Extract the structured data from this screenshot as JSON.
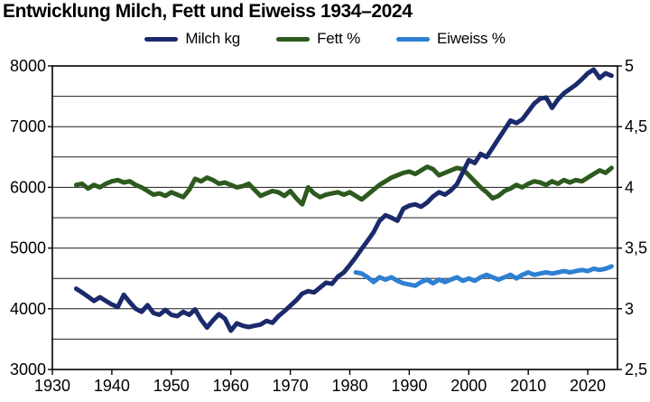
{
  "header": {
    "title": "Entwicklung Milch, Fett und Eiweiss 1934–2024"
  },
  "legend": [
    {
      "label": "Milch kg",
      "color": "#1b2a6b"
    },
    {
      "label": "Fett %",
      "color": "#2d5a1e"
    },
    {
      "label": "Eiweiss %",
      "color": "#2e80d2"
    }
  ],
  "chart_data": {
    "type": "line",
    "title": "Entwicklung Milch, Fett und Eiweiss 1934–2024",
    "grid": true,
    "legend_position": "top",
    "x_axis": {
      "min": 1930,
      "max": 2025,
      "tick_values": [
        1930,
        1940,
        1950,
        1960,
        1970,
        1980,
        1990,
        2000,
        2010,
        2020
      ],
      "tick_labels": [
        "1930",
        "1940",
        "1950",
        "1960",
        "1970",
        "1980",
        "1990",
        "2000",
        "2010",
        "2020"
      ]
    },
    "y_left": {
      "label": "Milch kg",
      "min": 3000,
      "max": 8000,
      "grid_step": 500,
      "tick_values": [
        3000,
        4000,
        5000,
        6000,
        7000,
        8000
      ],
      "tick_labels": [
        "3000",
        "4000",
        "5000",
        "6000",
        "7000",
        "8000"
      ]
    },
    "y_right": {
      "label": "Fett % / Eiweiss %",
      "min": 2.5,
      "max": 5,
      "tick_values": [
        2.5,
        3,
        3.5,
        4,
        4.5,
        5
      ],
      "tick_labels": [
        "2,5",
        "3",
        "3,5",
        "4",
        "4,5",
        "5"
      ]
    },
    "series": [
      {
        "name": "Milch kg",
        "axis": "left",
        "color": "#1b2a6b",
        "start_year": 1934,
        "values": [
          4330,
          4270,
          4200,
          4130,
          4190,
          4130,
          4070,
          4030,
          4230,
          4110,
          4000,
          3950,
          4060,
          3930,
          3900,
          3980,
          3900,
          3880,
          3950,
          3900,
          3990,
          3820,
          3690,
          3810,
          3910,
          3840,
          3640,
          3760,
          3720,
          3700,
          3720,
          3740,
          3800,
          3770,
          3880,
          3960,
          4050,
          4140,
          4250,
          4290,
          4270,
          4350,
          4430,
          4410,
          4530,
          4600,
          4720,
          4850,
          4990,
          5120,
          5260,
          5450,
          5540,
          5500,
          5450,
          5650,
          5700,
          5720,
          5680,
          5750,
          5850,
          5920,
          5880,
          5950,
          6050,
          6250,
          6450,
          6400,
          6550,
          6500,
          6650,
          6800,
          6950,
          7100,
          7060,
          7120,
          7250,
          7380,
          7460,
          7480,
          7310,
          7450,
          7550,
          7620,
          7690,
          7780,
          7880,
          7940,
          7800,
          7880,
          7840
        ]
      },
      {
        "name": "Fett %",
        "axis": "right",
        "color": "#2d5a1e",
        "start_year": 1934,
        "values": [
          4.02,
          4.03,
          3.99,
          4.02,
          4.0,
          4.03,
          4.05,
          4.06,
          4.04,
          4.05,
          4.02,
          4.0,
          3.97,
          3.94,
          3.95,
          3.93,
          3.96,
          3.94,
          3.92,
          3.98,
          4.07,
          4.05,
          4.08,
          4.06,
          4.03,
          4.04,
          4.02,
          4.0,
          4.01,
          4.03,
          3.98,
          3.93,
          3.95,
          3.97,
          3.96,
          3.93,
          3.97,
          3.91,
          3.86,
          4.0,
          3.95,
          3.92,
          3.94,
          3.95,
          3.96,
          3.94,
          3.96,
          3.93,
          3.9,
          3.94,
          3.98,
          4.02,
          4.05,
          4.08,
          4.1,
          4.12,
          4.13,
          4.11,
          4.14,
          4.17,
          4.15,
          4.1,
          4.12,
          4.14,
          4.16,
          4.15,
          4.1,
          4.05,
          4.0,
          3.96,
          3.91,
          3.93,
          3.97,
          3.99,
          4.02,
          4.0,
          4.03,
          4.05,
          4.04,
          4.02,
          4.05,
          4.03,
          4.06,
          4.04,
          4.06,
          4.05,
          4.08,
          4.11,
          4.14,
          4.12,
          4.16
        ]
      },
      {
        "name": "Eiweiss %",
        "axis": "right",
        "color": "#2e80d2",
        "start_year": 1981,
        "values": [
          3.3,
          3.29,
          3.26,
          3.22,
          3.26,
          3.24,
          3.26,
          3.23,
          3.21,
          3.2,
          3.19,
          3.22,
          3.24,
          3.21,
          3.24,
          3.22,
          3.24,
          3.26,
          3.23,
          3.25,
          3.23,
          3.26,
          3.28,
          3.26,
          3.24,
          3.26,
          3.28,
          3.25,
          3.28,
          3.3,
          3.28,
          3.29,
          3.3,
          3.29,
          3.3,
          3.31,
          3.3,
          3.31,
          3.32,
          3.31,
          3.33,
          3.32,
          3.33,
          3.35
        ]
      }
    ]
  }
}
